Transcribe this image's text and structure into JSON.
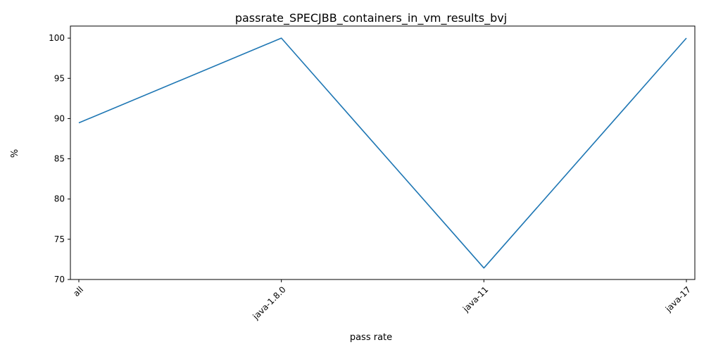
{
  "chart_data": {
    "type": "line",
    "title": "passrate_SPECJBB_containers_in_vm_results_bvj",
    "xlabel": "pass rate",
    "ylabel": "%",
    "categories": [
      "all",
      "java-1.8.0",
      "java-11",
      "java-17"
    ],
    "series": [
      {
        "values": [
          89.47,
          100.0,
          71.43,
          100.0
        ],
        "color": "#1f77b4"
      }
    ],
    "ylim": [
      70,
      101.5
    ],
    "yticks": [
      70,
      75,
      80,
      85,
      90,
      95,
      100
    ],
    "grid": false,
    "xtick_rotation": 45
  }
}
